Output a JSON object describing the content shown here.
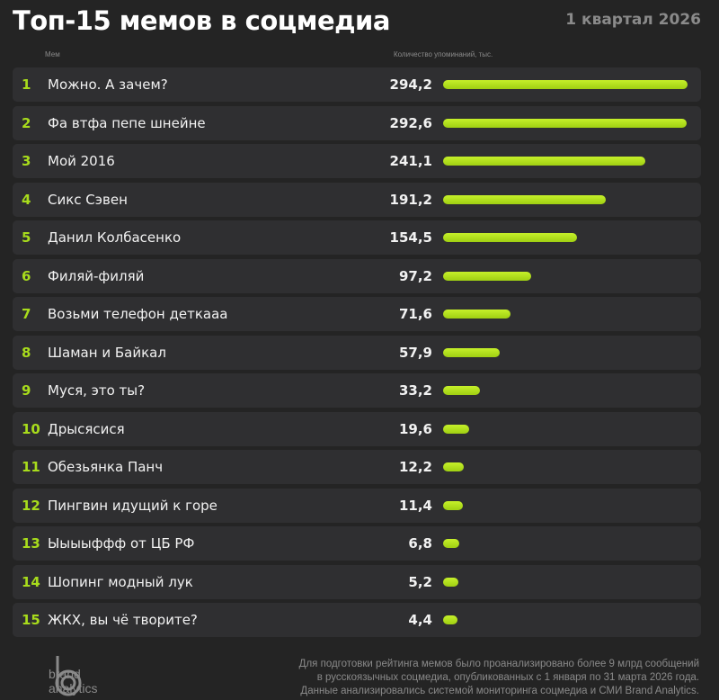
{
  "header": {
    "title": "Топ-15 мемов в соцмедиа",
    "period": "1 квартал 2026"
  },
  "columns": {
    "meme": "Мем",
    "count": "Количество упоминаний, тыс."
  },
  "colors": {
    "accent": "#a8dc1c",
    "bar": "#b5e61d",
    "background": "#242424",
    "row": "#2f2f31"
  },
  "chart_data": {
    "type": "bar",
    "orientation": "horizontal",
    "xlabel": "Количество упоминаний, тыс.",
    "categories": [
      "Можно. А зачем?",
      "Фа втфа пепе шнейне",
      "Мой 2016",
      "Сикс Сэвен",
      "Данил Колбасенко",
      "Филяй-филяй",
      "Возьми телефон деткааа",
      "Шаман и Байкал",
      "Муся, это ты?",
      "Дрысясися",
      "Обезьянка Панч",
      "Пингвин идущий к горе",
      "Ыыыыффф от ЦБ РФ",
      "Шопинг модный лук",
      "ЖКХ, вы чё творите?"
    ],
    "ranks": [
      "1",
      "2",
      "3",
      "4",
      "5",
      "6",
      "7",
      "8",
      "9",
      "10",
      "11",
      "12",
      "13",
      "14",
      "15"
    ],
    "values": [
      294.2,
      292.6,
      241.1,
      191.2,
      154.5,
      97.2,
      71.6,
      57.9,
      33.2,
      19.6,
      12.2,
      11.4,
      6.8,
      5.2,
      4.4
    ],
    "labels": [
      "294,2",
      "292,6",
      "241,1",
      "191,2",
      "154,5",
      "97,2",
      "71,6",
      "57,9",
      "33,2",
      "19,6",
      "12,2",
      "11,4",
      "6,8",
      "5,2",
      "4,4"
    ],
    "grid": false
  },
  "footer": {
    "logo": "brand analytics",
    "logo_line1": "brand",
    "logo_line2": "analytics",
    "note_lines": [
      "Для подготовки рейтинга мемов было проанализировано более 9 млрд сообщений",
      "в русскоязычных  соцмедиа, опубликованных с 1 января по 31 марта 2026 года.",
      "Данные анализировались системой мониторинга соцмедиа и СМИ Brand Analytics."
    ]
  }
}
